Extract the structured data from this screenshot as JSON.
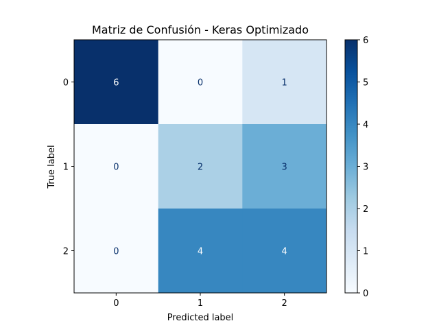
{
  "chart_data": {
    "type": "heatmap",
    "title": "Matriz de Confusión - Keras Optimizado",
    "xlabel": "Predicted label",
    "ylabel": "True label",
    "x_categories": [
      "0",
      "1",
      "2"
    ],
    "y_categories": [
      "0",
      "1",
      "2"
    ],
    "matrix": [
      [
        6,
        0,
        1
      ],
      [
        0,
        2,
        3
      ],
      [
        0,
        4,
        4
      ]
    ],
    "colormap": "Blues",
    "colorbar": {
      "range": [
        0,
        6
      ],
      "ticks": [
        "0",
        "1",
        "2",
        "3",
        "4",
        "5",
        "6"
      ]
    },
    "grid": false
  }
}
